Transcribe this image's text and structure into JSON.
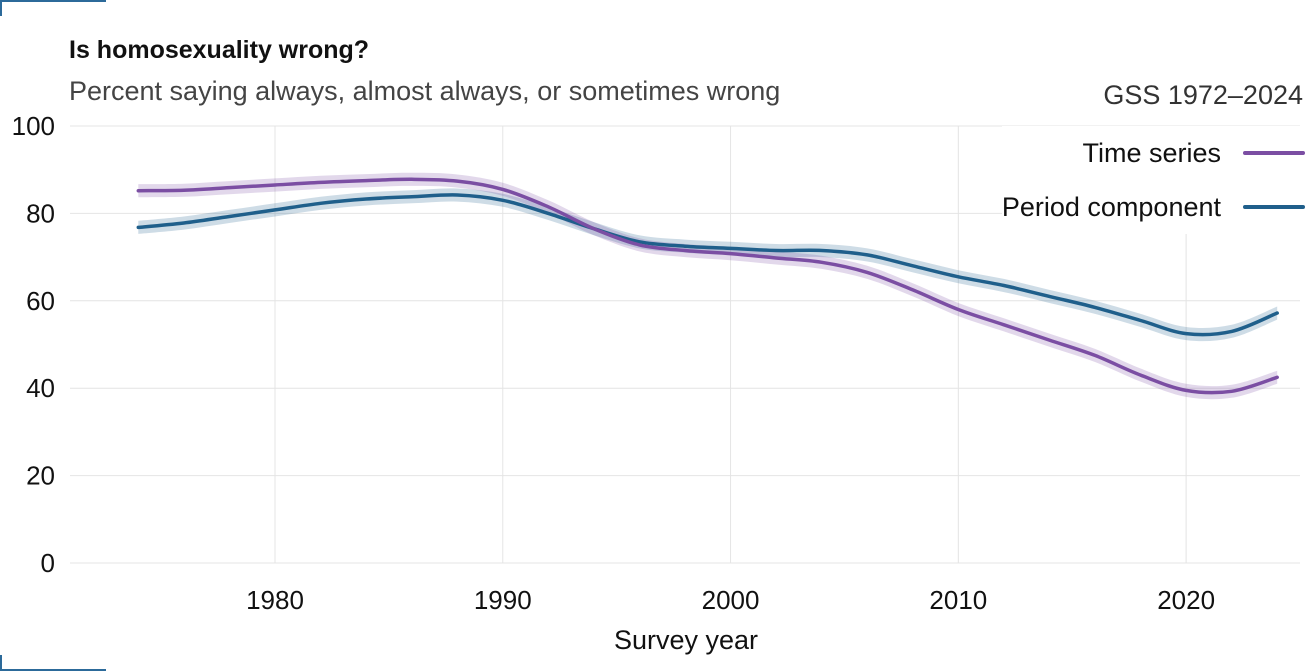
{
  "header": {
    "title": "Is homosexuality wrong?",
    "subtitle": "Percent saying always, almost always, or sometimes wrong",
    "caption": "GSS 1972–2024"
  },
  "colors": {
    "time_series": "#7b4ea3",
    "period_component": "#1f5f8b",
    "grid": "#e4e4e4",
    "corner": "#2c6a9a"
  },
  "chart_data": {
    "type": "line",
    "title": "Is homosexuality wrong?",
    "subtitle": "Percent saying always, almost always, or sometimes wrong",
    "xlabel": "Survey year",
    "ylabel": "",
    "xlim": [
      1971,
      2025
    ],
    "ylim": [
      0,
      100
    ],
    "xticks": [
      1980,
      1990,
      2000,
      2010,
      2020
    ],
    "yticks": [
      0,
      20,
      40,
      60,
      80,
      100
    ],
    "grid": true,
    "legend_position": "top-right",
    "series": [
      {
        "name": "Time series",
        "color": "#7b4ea3",
        "band_halfwidth": 1.5,
        "x": [
          1974,
          1976,
          1978,
          1980,
          1982,
          1984,
          1986,
          1988,
          1990,
          1992,
          1994,
          1996,
          1998,
          2000,
          2002,
          2004,
          2006,
          2008,
          2010,
          2012,
          2014,
          2016,
          2018,
          2020,
          2022,
          2024
        ],
        "y": [
          85.2,
          85.3,
          85.9,
          86.5,
          87.1,
          87.5,
          87.8,
          87.4,
          85.5,
          81.5,
          76.5,
          72.8,
          71.5,
          70.8,
          69.8,
          68.8,
          66.5,
          62.5,
          58.0,
          54.5,
          51.0,
          47.5,
          43.0,
          39.5,
          39.3,
          42.5
        ]
      },
      {
        "name": "Period component",
        "color": "#1f5f8b",
        "band_halfwidth": 1.5,
        "x": [
          1974,
          1976,
          1978,
          1980,
          1982,
          1984,
          1986,
          1988,
          1990,
          1992,
          1994,
          1996,
          1998,
          2000,
          2002,
          2004,
          2006,
          2008,
          2010,
          2012,
          2014,
          2016,
          2018,
          2020,
          2022,
          2024
        ],
        "y": [
          76.8,
          77.8,
          79.3,
          80.8,
          82.3,
          83.3,
          83.8,
          84.2,
          83.0,
          80.0,
          76.5,
          73.5,
          72.5,
          72.0,
          71.5,
          71.5,
          70.5,
          68.0,
          65.5,
          63.5,
          61.0,
          58.5,
          55.5,
          52.5,
          53.0,
          57.2
        ]
      }
    ]
  }
}
